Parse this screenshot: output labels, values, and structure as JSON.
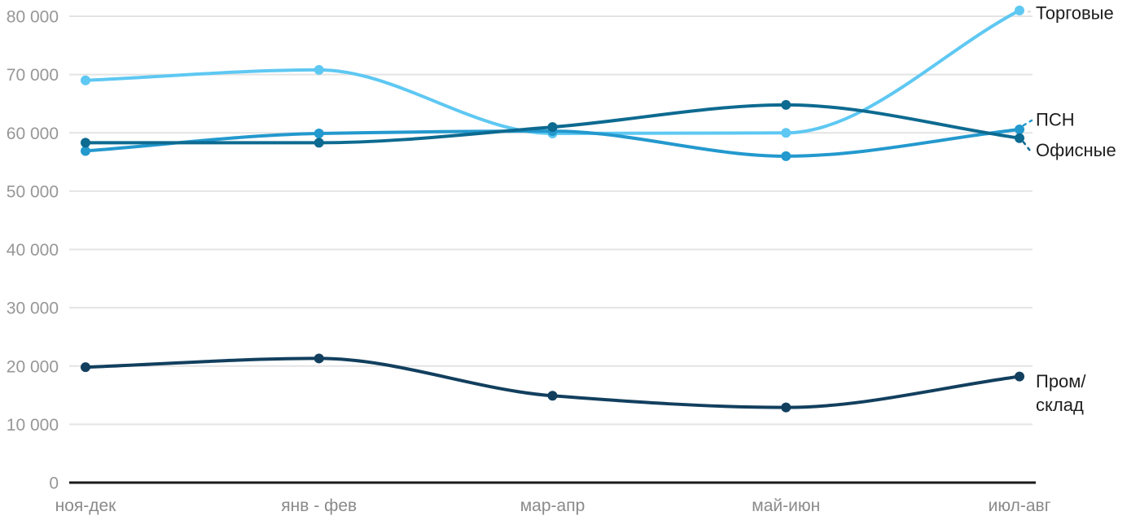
{
  "background_color": "#ffffff",
  "chart_data": {
    "type": "line",
    "title": "",
    "x_categories": [
      "ноя-дек",
      "янв - фев",
      "мар-апр",
      "май-июн",
      "июл-авг"
    ],
    "y_tick_labels": [
      "0",
      "10 000",
      "20 000",
      "30 000",
      "40 000",
      "50 000",
      "60 000",
      "70 000",
      "80 000"
    ],
    "y_tick_values": [
      0,
      10000,
      20000,
      30000,
      40000,
      50000,
      60000,
      70000,
      80000
    ],
    "ylim": [
      0,
      80000
    ],
    "xlabel": "",
    "ylabel": "",
    "grid": "horizontal-only",
    "legend_position": "direct-labels-right",
    "interpolation": "monotone",
    "gridline_color": "#e4e4e4",
    "axis_color": "#1a1a1a",
    "tick_label_color": "#8f8f8f",
    "series_label_color": "#1e1e1e",
    "leader_gray_color": "#d8d8d8",
    "series": [
      {
        "name": "Торговые",
        "color": "#5ec8f2",
        "values": [
          69000,
          70800,
          59900,
          60000,
          81000
        ],
        "label_lines": [
          "Торговые"
        ],
        "leader": "solid-gray"
      },
      {
        "name": "ПСН",
        "color": "#2399ce",
        "values": [
          56900,
          59900,
          60300,
          56000,
          60600
        ],
        "label_lines": [
          "ПСН"
        ],
        "leader": "dashed-up"
      },
      {
        "name": "Офисные",
        "color": "#0d6a90",
        "values": [
          58300,
          58300,
          61000,
          64800,
          59100
        ],
        "label_lines": [
          "Офисные"
        ],
        "leader": "dashed-down"
      },
      {
        "name": "Пром/склад",
        "color": "#123f5e",
        "values": [
          19800,
          21300,
          14900,
          12900,
          18200
        ],
        "label_lines": [
          "Пром/",
          "склад"
        ],
        "leader": "none"
      }
    ]
  }
}
